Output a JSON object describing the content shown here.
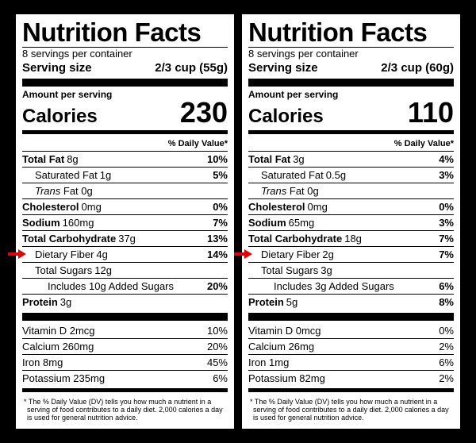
{
  "labels": {
    "title": "Nutrition Facts",
    "amount_per_serving": "Amount per serving",
    "calories": "Calories",
    "dv_header": "% Daily Value*",
    "serving_size_label": "Serving size",
    "footnote": "* The % Daily Value (DV) tells you how much a nutrient in a serving of food contributes to a daily diet. 2,000 calories a day is used for general nutrition advice."
  },
  "arrow_color": "#e20000",
  "panels": [
    {
      "servings_text": "8 servings per container",
      "serving_size_value": "2/3 cup (55g)",
      "calories": "230",
      "highlight_row_label": "Dietary Fiber",
      "nutrients": [
        {
          "label": "Total Fat",
          "amount": "8g",
          "pct": "10%",
          "bold": true,
          "indent": 0
        },
        {
          "label": "Saturated Fat",
          "amount": "1g",
          "pct": "5%",
          "bold": false,
          "indent": 1
        },
        {
          "label": "Trans",
          "amount_suffix": " Fat 0g",
          "pct": "",
          "bold": false,
          "indent": 1,
          "italic_label": true
        },
        {
          "label": "Cholesterol",
          "amount": "0mg",
          "pct": "0%",
          "bold": true,
          "indent": 0
        },
        {
          "label": "Sodium",
          "amount": "160mg",
          "pct": "7%",
          "bold": true,
          "indent": 0
        },
        {
          "label": "Total Carbohydrate",
          "amount": "37g",
          "pct": "13%",
          "bold": true,
          "indent": 0
        },
        {
          "label": "Dietary Fiber",
          "amount": "4g",
          "pct": "14%",
          "bold": false,
          "indent": 1
        },
        {
          "label": "Total Sugars",
          "amount": "12g",
          "pct": "",
          "bold": false,
          "indent": 1
        },
        {
          "label": "Includes 10g Added Sugars",
          "amount": "",
          "pct": "20%",
          "bold": false,
          "indent": 2
        },
        {
          "label": "Protein",
          "amount": "3g",
          "pct": "",
          "bold": true,
          "indent": 0
        }
      ],
      "vitamins": [
        {
          "label": "Vitamin D 2mcg",
          "pct": "10%"
        },
        {
          "label": "Calcium 260mg",
          "pct": "20%"
        },
        {
          "label": "Iron 8mg",
          "pct": "45%"
        },
        {
          "label": "Potassium 235mg",
          "pct": "6%"
        }
      ]
    },
    {
      "servings_text": "8 servings per container",
      "serving_size_value": "2/3 cup (60g)",
      "calories": "110",
      "highlight_row_label": "Dietary Fiber",
      "nutrients": [
        {
          "label": "Total Fat",
          "amount": "3g",
          "pct": "4%",
          "bold": true,
          "indent": 0
        },
        {
          "label": "Saturated Fat",
          "amount": "0.5g",
          "pct": "3%",
          "bold": false,
          "indent": 1
        },
        {
          "label": "Trans",
          "amount_suffix": " Fat 0g",
          "pct": "",
          "bold": false,
          "indent": 1,
          "italic_label": true
        },
        {
          "label": "Cholesterol",
          "amount": "0mg",
          "pct": "0%",
          "bold": true,
          "indent": 0
        },
        {
          "label": "Sodium",
          "amount": "65mg",
          "pct": "3%",
          "bold": true,
          "indent": 0
        },
        {
          "label": "Total Carbohydrate",
          "amount": "18g",
          "pct": "7%",
          "bold": true,
          "indent": 0
        },
        {
          "label": "Dietary Fiber",
          "amount": "2g",
          "pct": "7%",
          "bold": false,
          "indent": 1
        },
        {
          "label": "Total Sugars",
          "amount": "3g",
          "pct": "",
          "bold": false,
          "indent": 1
        },
        {
          "label": "Includes 3g Added Sugars",
          "amount": "",
          "pct": "6%",
          "bold": false,
          "indent": 2
        },
        {
          "label": "Protein",
          "amount": "5g",
          "pct": "8%",
          "bold": true,
          "indent": 0
        }
      ],
      "vitamins": [
        {
          "label": "Vitamin D 0mcg",
          "pct": "0%"
        },
        {
          "label": "Calcium 26mg",
          "pct": "2%"
        },
        {
          "label": "Iron 1mg",
          "pct": "6%"
        },
        {
          "label": "Potassium 82mg",
          "pct": "2%"
        }
      ]
    }
  ]
}
